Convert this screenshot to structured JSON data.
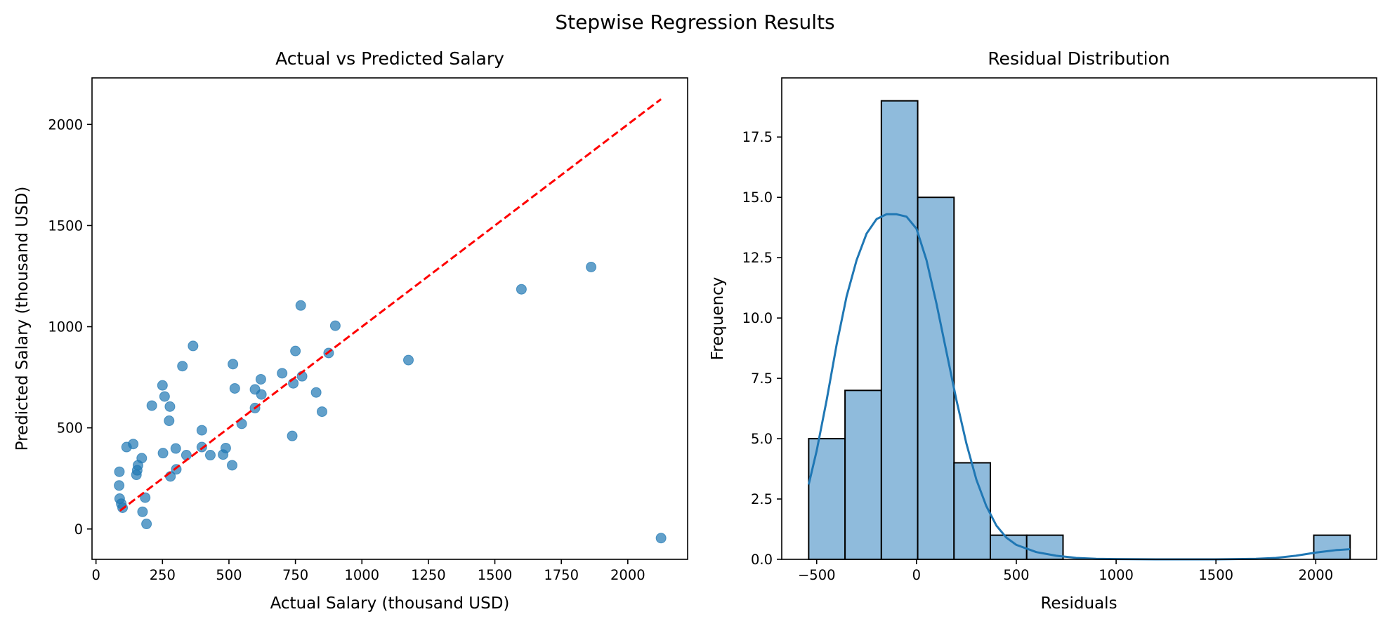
{
  "figure": {
    "suptitle": "Stepwise Regression Results"
  },
  "chart_data": [
    {
      "type": "scatter",
      "title": "Actual vs Predicted Salary",
      "xlabel": "Actual Salary (thousand USD)",
      "ylabel": "Predicted Salary (thousand USD)",
      "xlim": [
        -15,
        2225
      ],
      "ylim": [
        -150,
        2230
      ],
      "xticks": [
        0,
        250,
        500,
        750,
        1000,
        1250,
        1500,
        1750,
        2000
      ],
      "yticks": [
        0,
        500,
        1000,
        1500,
        2000
      ],
      "grid": false,
      "point_color": "#1f77b4",
      "reference_line": {
        "from": [
          90,
          90
        ],
        "to": [
          2125,
          2125
        ],
        "color": "#ff0000",
        "style": "dashed"
      },
      "points": [
        {
          "x": 88,
          "y": 283
        },
        {
          "x": 87,
          "y": 215
        },
        {
          "x": 89,
          "y": 150
        },
        {
          "x": 95,
          "y": 125
        },
        {
          "x": 100,
          "y": 105
        },
        {
          "x": 115,
          "y": 405
        },
        {
          "x": 140,
          "y": 420
        },
        {
          "x": 152,
          "y": 268
        },
        {
          "x": 155,
          "y": 290
        },
        {
          "x": 158,
          "y": 315
        },
        {
          "x": 172,
          "y": 350
        },
        {
          "x": 175,
          "y": 85
        },
        {
          "x": 185,
          "y": 155
        },
        {
          "x": 190,
          "y": 25
        },
        {
          "x": 210,
          "y": 610
        },
        {
          "x": 250,
          "y": 710
        },
        {
          "x": 252,
          "y": 375
        },
        {
          "x": 258,
          "y": 655
        },
        {
          "x": 275,
          "y": 535
        },
        {
          "x": 278,
          "y": 605
        },
        {
          "x": 280,
          "y": 260
        },
        {
          "x": 300,
          "y": 398
        },
        {
          "x": 302,
          "y": 295
        },
        {
          "x": 325,
          "y": 805
        },
        {
          "x": 340,
          "y": 365
        },
        {
          "x": 365,
          "y": 905
        },
        {
          "x": 398,
          "y": 488
        },
        {
          "x": 398,
          "y": 405
        },
        {
          "x": 430,
          "y": 365
        },
        {
          "x": 478,
          "y": 368
        },
        {
          "x": 488,
          "y": 400
        },
        {
          "x": 512,
          "y": 315
        },
        {
          "x": 515,
          "y": 815
        },
        {
          "x": 522,
          "y": 695
        },
        {
          "x": 548,
          "y": 520
        },
        {
          "x": 598,
          "y": 598
        },
        {
          "x": 598,
          "y": 690
        },
        {
          "x": 620,
          "y": 740
        },
        {
          "x": 622,
          "y": 665
        },
        {
          "x": 700,
          "y": 770
        },
        {
          "x": 738,
          "y": 460
        },
        {
          "x": 742,
          "y": 720
        },
        {
          "x": 750,
          "y": 880
        },
        {
          "x": 770,
          "y": 1105
        },
        {
          "x": 775,
          "y": 755
        },
        {
          "x": 828,
          "y": 675
        },
        {
          "x": 850,
          "y": 580
        },
        {
          "x": 875,
          "y": 870
        },
        {
          "x": 900,
          "y": 1005
        },
        {
          "x": 1175,
          "y": 835
        },
        {
          "x": 1600,
          "y": 1185
        },
        {
          "x": 1862,
          "y": 1295
        },
        {
          "x": 2125,
          "y": -45
        }
      ]
    },
    {
      "type": "bar",
      "subtype": "histogram",
      "title": "Residual Distribution",
      "xlabel": "Residuals",
      "ylabel": "Frequency",
      "xlim": [
        -675,
        2305
      ],
      "ylim": [
        0,
        19.95
      ],
      "xticks": [
        -500,
        0,
        500,
        1000,
        1500,
        2000
      ],
      "yticks": [
        0.0,
        2.5,
        5.0,
        7.5,
        10.0,
        12.5,
        15.0,
        17.5
      ],
      "xtick_labels": [
        "−500",
        "0",
        "500",
        "1000",
        "1500",
        "2000"
      ],
      "ytick_labels": [
        "0.0",
        "2.5",
        "5.0",
        "7.5",
        "10.0",
        "12.5",
        "15.0",
        "17.5"
      ],
      "grid": false,
      "bar_color": "#8fbbdc",
      "edge_color": "#000000",
      "bins": [
        {
          "start": -540,
          "end": -358,
          "count": 5
        },
        {
          "start": -358,
          "end": -176,
          "count": 7
        },
        {
          "start": -176,
          "end": 6,
          "count": 19
        },
        {
          "start": 6,
          "end": 188,
          "count": 15
        },
        {
          "start": 188,
          "end": 370,
          "count": 4
        },
        {
          "start": 370,
          "end": 552,
          "count": 1
        },
        {
          "start": 552,
          "end": 734,
          "count": 1
        },
        {
          "start": 1990,
          "end": 2172,
          "count": 1
        }
      ],
      "kde": {
        "color": "#1f77b4",
        "points": [
          [
            -540,
            3.1
          ],
          [
            -500,
            4.5
          ],
          [
            -450,
            6.6
          ],
          [
            -400,
            8.9
          ],
          [
            -350,
            10.9
          ],
          [
            -300,
            12.4
          ],
          [
            -250,
            13.5
          ],
          [
            -200,
            14.1
          ],
          [
            -150,
            14.3
          ],
          [
            -100,
            14.3
          ],
          [
            -50,
            14.2
          ],
          [
            0,
            13.7
          ],
          [
            50,
            12.4
          ],
          [
            100,
            10.6
          ],
          [
            150,
            8.6
          ],
          [
            200,
            6.6
          ],
          [
            250,
            4.8
          ],
          [
            300,
            3.3
          ],
          [
            350,
            2.2
          ],
          [
            400,
            1.4
          ],
          [
            450,
            0.9
          ],
          [
            500,
            0.6
          ],
          [
            600,
            0.3
          ],
          [
            700,
            0.15
          ],
          [
            800,
            0.06
          ],
          [
            900,
            0.02
          ],
          [
            1000,
            0.01
          ],
          [
            1200,
            0.0
          ],
          [
            1500,
            0.0
          ],
          [
            1700,
            0.02
          ],
          [
            1800,
            0.06
          ],
          [
            1900,
            0.15
          ],
          [
            2000,
            0.28
          ],
          [
            2100,
            0.38
          ],
          [
            2172,
            0.42
          ]
        ]
      }
    }
  ]
}
